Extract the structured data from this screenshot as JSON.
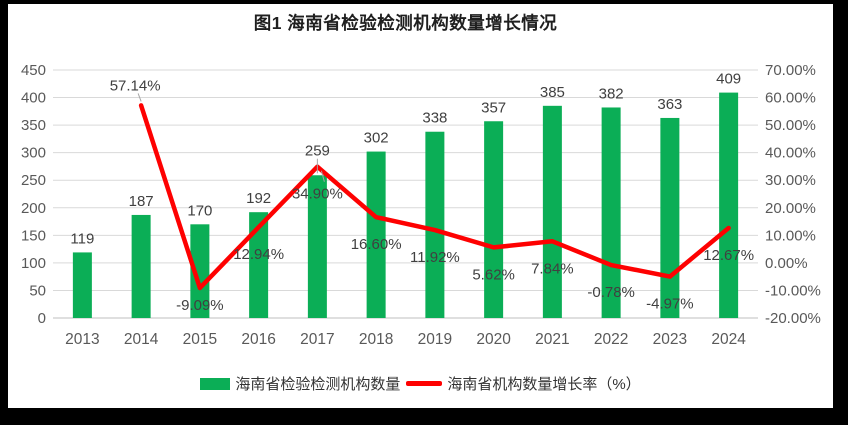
{
  "figure": {
    "title": "图1 海南省检验检测机构数量增长情况"
  },
  "chart_data": {
    "type": "combo-bar-line",
    "title": "图1 海南省检验检测机构数量增长情况",
    "categories": [
      "2013",
      "2014",
      "2015",
      "2016",
      "2017",
      "2018",
      "2019",
      "2020",
      "2021",
      "2022",
      "2023",
      "2024"
    ],
    "series": [
      {
        "name": "海南省检验检测机构数量",
        "type": "bar",
        "axis": "left",
        "color": "#0BAE56",
        "values": [
          119,
          187,
          170,
          192,
          259,
          302,
          338,
          357,
          385,
          382,
          363,
          409
        ]
      },
      {
        "name": "海南省机构数量增长率（%）",
        "type": "line",
        "axis": "right",
        "color": "#FE0101",
        "values": [
          null,
          57.14,
          -9.09,
          12.94,
          34.9,
          16.6,
          11.92,
          5.62,
          7.84,
          -0.78,
          -4.97,
          12.67
        ],
        "point_labels": [
          null,
          "57.14%",
          "-9.09%",
          "12.94%",
          "34.90%",
          "16.60%",
          "11.92%",
          "5.62%",
          "7.84%",
          "-0.78%",
          "-4.97%",
          "12.67%"
        ]
      }
    ],
    "left_axis": {
      "min": 0,
      "max": 450,
      "step": 50,
      "ticks": [
        "450",
        "400",
        "350",
        "300",
        "250",
        "200",
        "150",
        "100",
        "50",
        "0"
      ]
    },
    "right_axis": {
      "min": -20,
      "max": 70,
      "step": 10,
      "ticks": [
        "70.00%",
        "60.00%",
        "50.00%",
        "40.00%",
        "30.00%",
        "20.00%",
        "10.00%",
        "0.00%",
        "-10.00%",
        "-20.00%"
      ]
    },
    "grid": true,
    "legend_position": "bottom"
  },
  "style": {
    "bar_color": "#0BAE56",
    "line_color": "#FE0101",
    "grid_color": "#D9D9D9",
    "axis_line_color": "#BFBFBF",
    "tick_text_color": "#595959",
    "label_text_color": "#404040",
    "leader_color": "#A6A6A6",
    "panel_color": "#FFFFFF",
    "frame_color": "#000000"
  }
}
